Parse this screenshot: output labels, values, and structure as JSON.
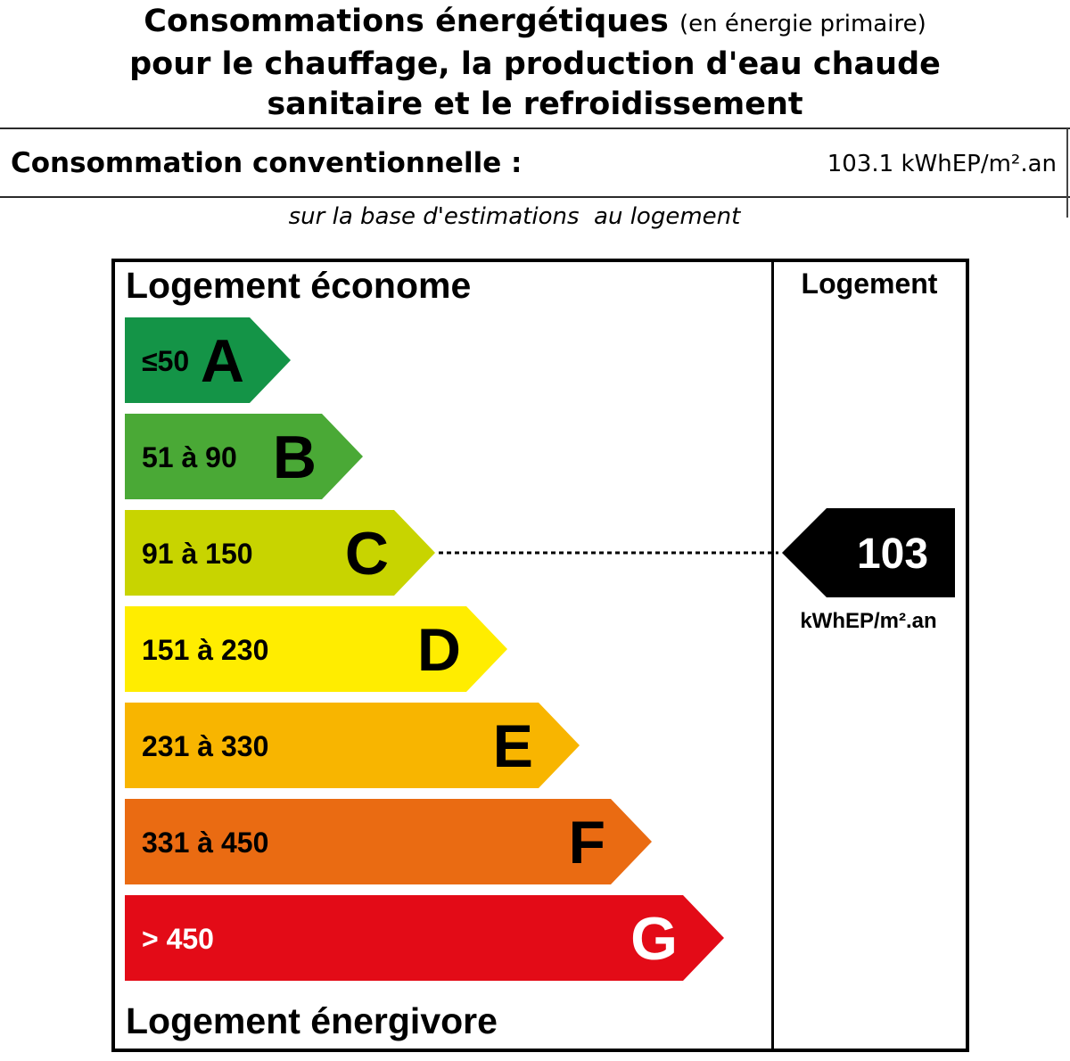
{
  "header": {
    "title_main": "Consommations énergétiques",
    "title_sub": "(en énergie primaire)",
    "title_line2": "pour le chauffage, la production d'eau chaude",
    "title_line3": "sanitaire et le refroidissement"
  },
  "consommation": {
    "label": "Consommation conventionnelle :",
    "value": "103.1 kWhEP/m².an",
    "note": "sur la base d'estimations  au logement"
  },
  "chart_data": {
    "type": "bar",
    "label_top": "Logement économe",
    "label_bottom": "Logement énergivore",
    "column_header": "Logement",
    "classes": [
      {
        "letter": "A",
        "range": "≤50",
        "color": "#149447"
      },
      {
        "letter": "B",
        "range": "51 à 90",
        "color": "#4aa936"
      },
      {
        "letter": "C",
        "range": "91 à 150",
        "color": "#c8d400"
      },
      {
        "letter": "D",
        "range": "151 à 230",
        "color": "#ffed00"
      },
      {
        "letter": "E",
        "range": "231 à 330",
        "color": "#f8b500"
      },
      {
        "letter": "F",
        "range": "331 à 450",
        "color": "#ea6b12"
      },
      {
        "letter": "G",
        "range": "> 450",
        "color": "#e30b17"
      }
    ],
    "indicator": {
      "value": "103",
      "class": "C",
      "unit": "kWhEP/m².an",
      "color": "#000000"
    }
  }
}
